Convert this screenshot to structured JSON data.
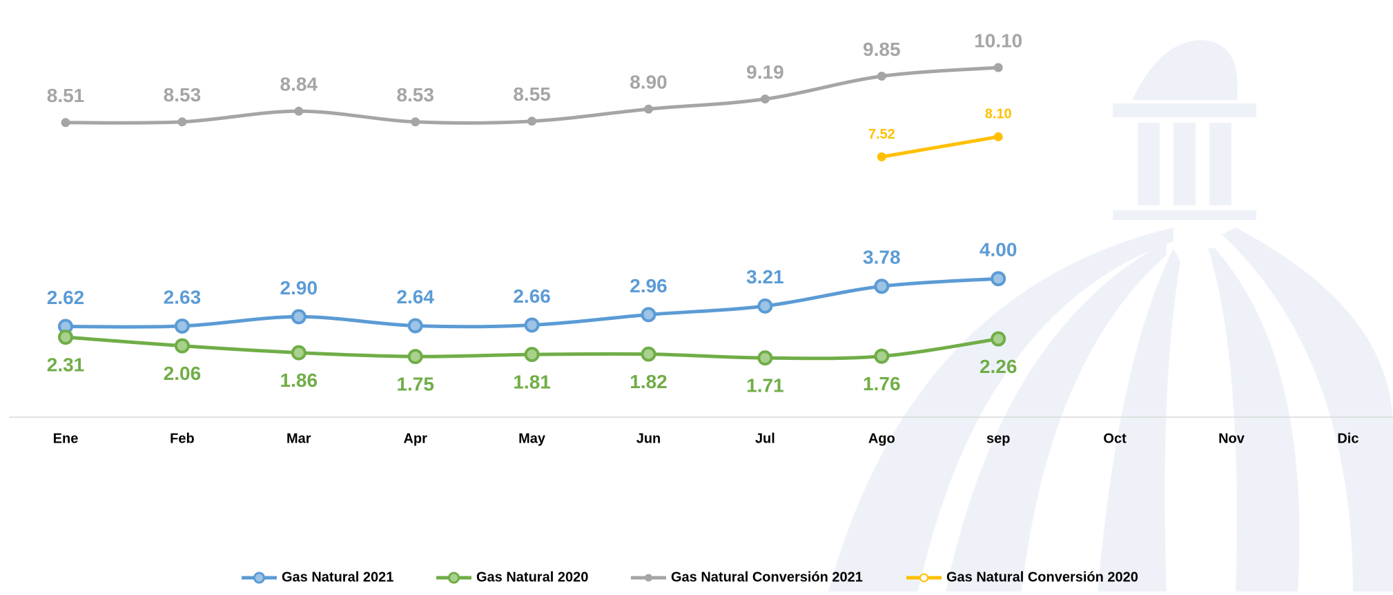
{
  "chart_data": {
    "type": "line",
    "categories": [
      "Ene",
      "Feb",
      "Mar",
      "Apr",
      "May",
      "Jun",
      "Jul",
      "Ago",
      "sep",
      "Oct",
      "Nov",
      "Dic"
    ],
    "series": [
      {
        "name": "Gas Natural 2021",
        "color": "#5b9bd5",
        "values": [
          2.62,
          2.63,
          2.9,
          2.64,
          2.66,
          2.96,
          3.21,
          3.78,
          4,
          null,
          null,
          null
        ],
        "value_labels": [
          "2.62",
          "2.63",
          "2.90",
          "2.64",
          "2.66",
          "2.96",
          "3.21",
          "3.78",
          "4.00",
          null,
          null,
          null
        ]
      },
      {
        "name": "Gas Natural 2020",
        "color": "#70ad47",
        "values": [
          2.31,
          2.06,
          1.86,
          1.75,
          1.81,
          1.82,
          1.71,
          1.76,
          2.26,
          null,
          null,
          null
        ],
        "value_labels": [
          "2.31",
          "2.06",
          "1.86",
          "1.75",
          "1.81",
          "1.82",
          "1.71",
          "1.76",
          "2.26",
          null,
          null,
          null
        ]
      },
      {
        "name": "Gas Natural Conversión 2021",
        "color": "#a5a5a5",
        "values": [
          8.51,
          8.53,
          8.84,
          8.53,
          8.55,
          8.9,
          9.19,
          9.85,
          10.1,
          null,
          null,
          null
        ],
        "value_labels": [
          "8.51",
          "8.53",
          "8.84",
          "8.53",
          "8.55",
          "8.90",
          "9.19",
          "9.85",
          "10.10",
          null,
          null,
          null
        ]
      },
      {
        "name": "Gas Natural Conversión 2020",
        "color": "#ffc000",
        "values": [
          null,
          null,
          null,
          null,
          null,
          null,
          null,
          7.52,
          8.1,
          null,
          null,
          null
        ],
        "value_labels": [
          null,
          null,
          null,
          null,
          null,
          null,
          null,
          "7.52",
          "8.10",
          null,
          null,
          null
        ]
      }
    ]
  }
}
